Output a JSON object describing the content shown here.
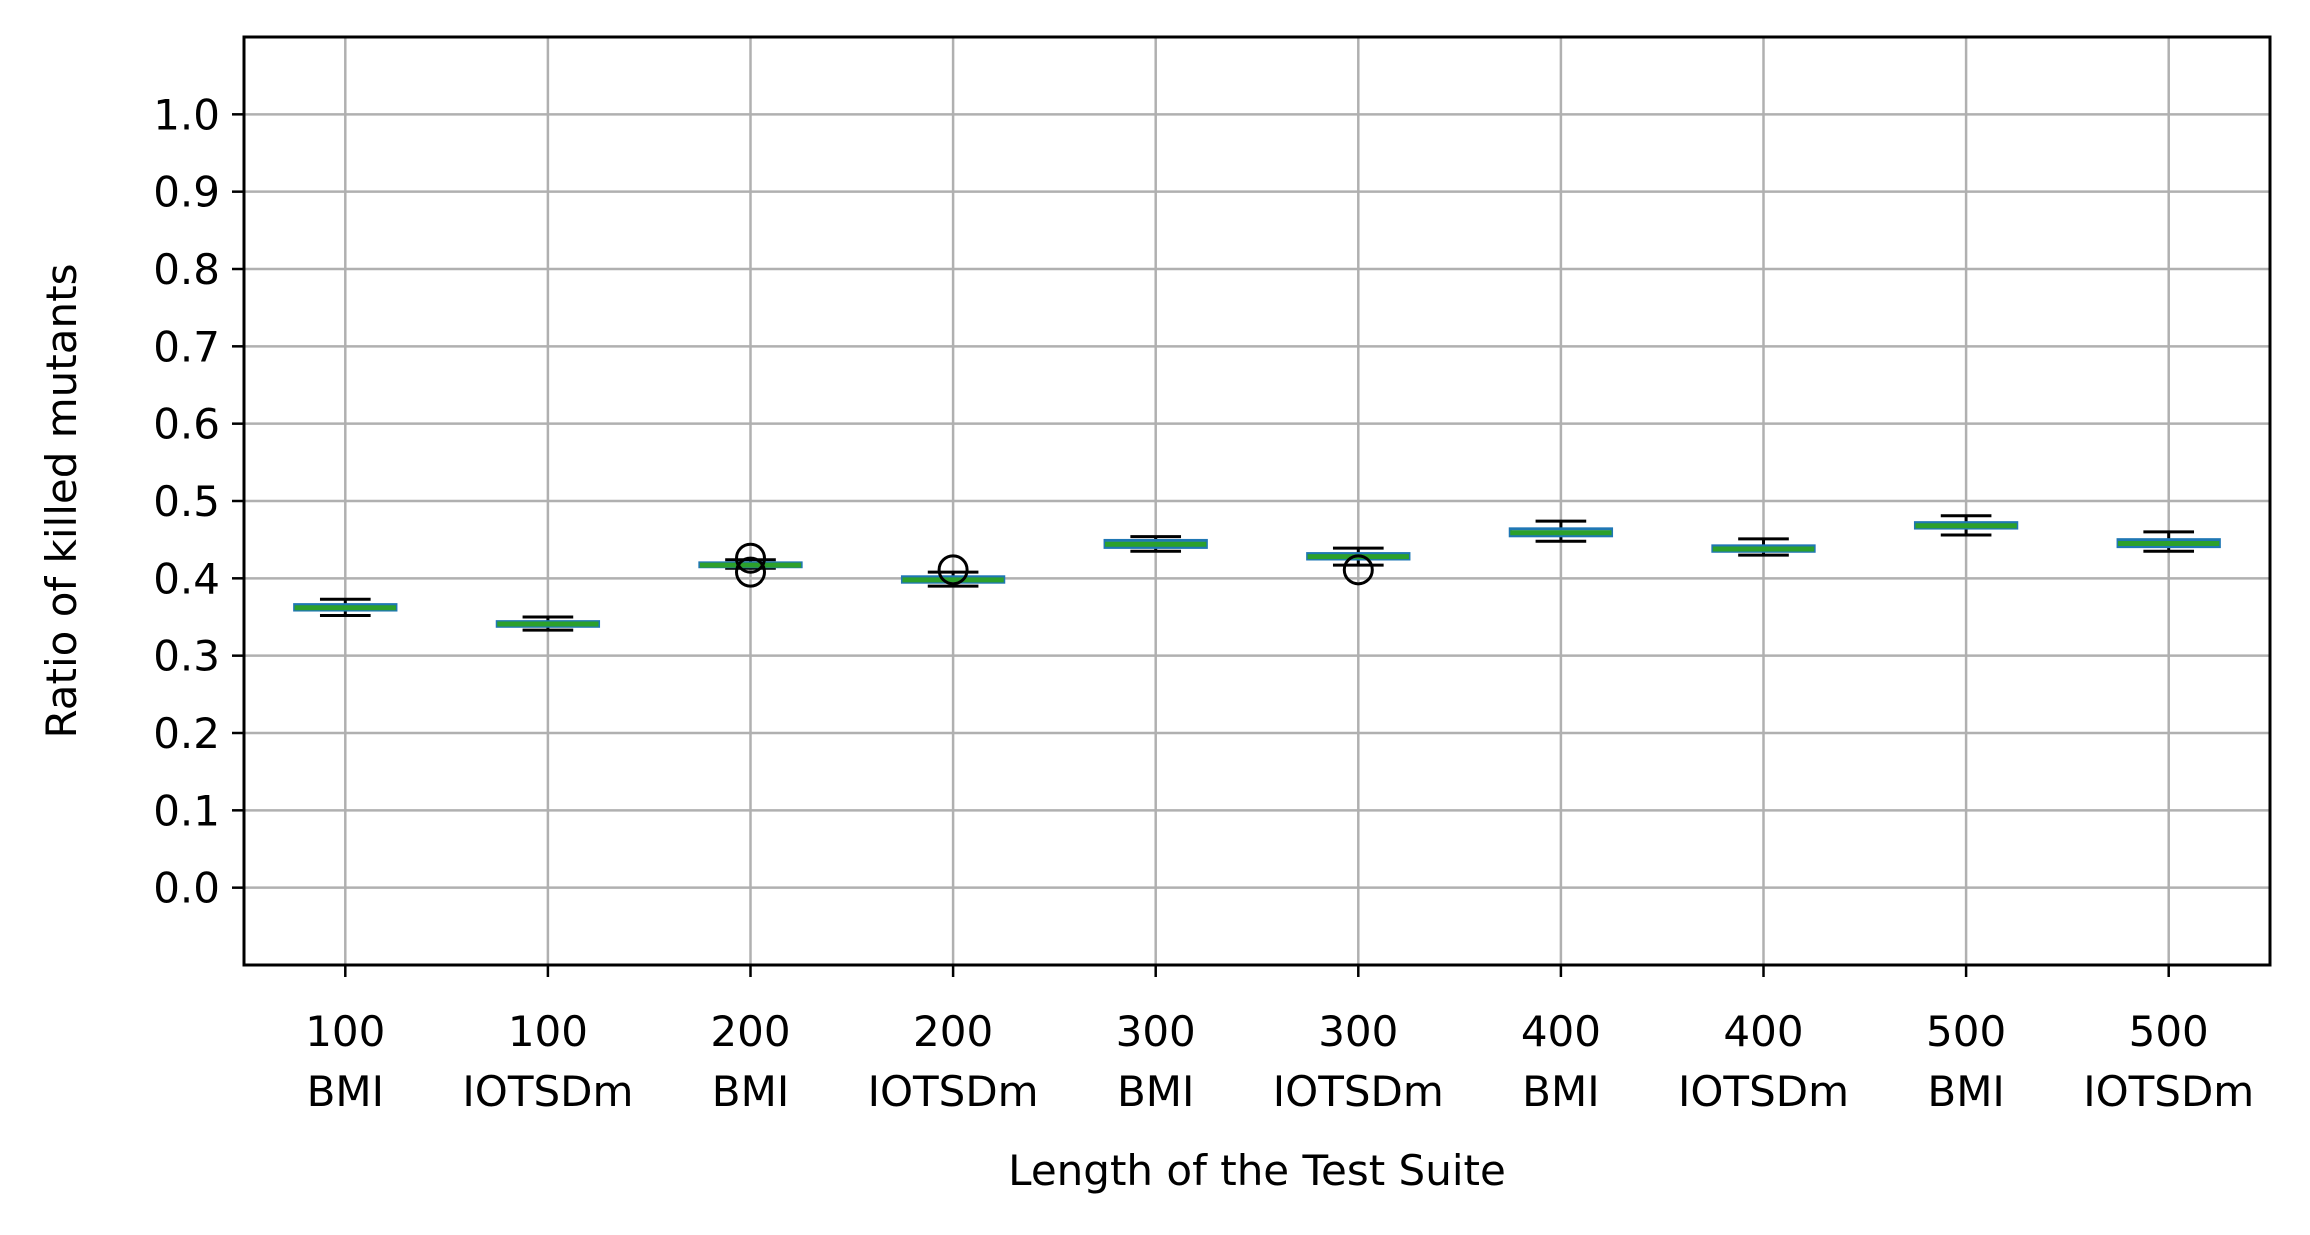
{
  "chart_data": {
    "type": "box",
    "title": "",
    "xlabel": "Length of the Test Suite",
    "ylabel": "Ratio of killed mutants",
    "ylim": [
      -0.1,
      1.1
    ],
    "y_ticks": [
      "0.0",
      "0.1",
      "0.2",
      "0.3",
      "0.4",
      "0.5",
      "0.6",
      "0.7",
      "0.8",
      "0.9",
      "1.0"
    ],
    "y_tick_values": [
      0.0,
      0.1,
      0.2,
      0.3,
      0.4,
      0.5,
      0.6,
      0.7,
      0.8,
      0.9,
      1.0
    ],
    "grid": true,
    "colors": {
      "box": "#1f77b4",
      "median": "#2ca02c",
      "whisker": "#000000",
      "grid": "#b0b0b0"
    },
    "categories": [
      {
        "line1": "100",
        "line2": "BMI"
      },
      {
        "line1": "100",
        "line2": "IOTSDm"
      },
      {
        "line1": "200",
        "line2": "BMI"
      },
      {
        "line1": "200",
        "line2": "IOTSDm"
      },
      {
        "line1": "300",
        "line2": "BMI"
      },
      {
        "line1": "300",
        "line2": "IOTSDm"
      },
      {
        "line1": "400",
        "line2": "BMI"
      },
      {
        "line1": "400",
        "line2": "IOTSDm"
      },
      {
        "line1": "500",
        "line2": "BMI"
      },
      {
        "line1": "500",
        "line2": "IOTSDm"
      }
    ],
    "boxes": [
      {
        "min": 0.352,
        "q1": 0.359,
        "median": 0.362,
        "q3": 0.366,
        "max": 0.373,
        "outliers": []
      },
      {
        "min": 0.333,
        "q1": 0.338,
        "median": 0.341,
        "q3": 0.344,
        "max": 0.35,
        "outliers": []
      },
      {
        "min": 0.413,
        "q1": 0.415,
        "median": 0.417,
        "q3": 0.42,
        "max": 0.424,
        "outliers": [
          0.408,
          0.426
        ]
      },
      {
        "min": 0.39,
        "q1": 0.395,
        "median": 0.398,
        "q3": 0.402,
        "max": 0.408,
        "outliers": [
          0.411
        ]
      },
      {
        "min": 0.435,
        "q1": 0.44,
        "median": 0.444,
        "q3": 0.449,
        "max": 0.454,
        "outliers": []
      },
      {
        "min": 0.417,
        "q1": 0.425,
        "median": 0.428,
        "q3": 0.432,
        "max": 0.439,
        "outliers": [
          0.411
        ]
      },
      {
        "min": 0.448,
        "q1": 0.455,
        "median": 0.459,
        "q3": 0.464,
        "max": 0.474,
        "outliers": []
      },
      {
        "min": 0.43,
        "q1": 0.435,
        "median": 0.438,
        "q3": 0.442,
        "max": 0.451,
        "outliers": []
      },
      {
        "min": 0.456,
        "q1": 0.465,
        "median": 0.468,
        "q3": 0.472,
        "max": 0.481,
        "outliers": []
      },
      {
        "min": 0.435,
        "q1": 0.441,
        "median": 0.445,
        "q3": 0.45,
        "max": 0.46,
        "outliers": []
      }
    ]
  }
}
